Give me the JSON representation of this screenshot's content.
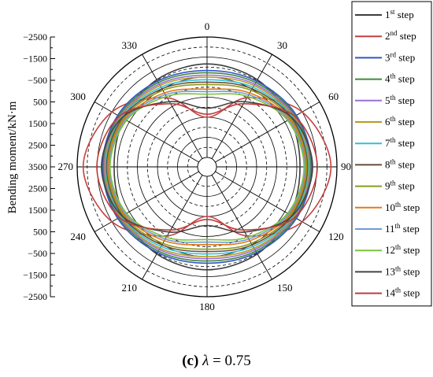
{
  "chart_data": {
    "type": "polar-line",
    "ylabel": "Bending moment/kN·m",
    "y_ticks": [
      "−2500",
      "−1500",
      "−500",
      "500",
      "1500",
      "2500",
      "3500",
      "2500",
      "1500",
      "500",
      "−500",
      "−1500",
      "−2500"
    ],
    "angle_ticks": [
      "0",
      "30",
      "60",
      "90",
      "120",
      "150",
      "180",
      "210",
      "240",
      "270",
      "300",
      "330"
    ],
    "radial_range": [
      -2500,
      3500
    ],
    "legend_position": "right",
    "caption": {
      "label": "(c)",
      "symbol": "λ",
      "value": " = 0.75"
    },
    "series": [
      {
        "name": "1",
        "suffix": "st",
        "color": "#3c3c3c",
        "values": [
          2160,
          2040,
          1800,
          1660,
          1800,
          2040,
          2160,
          2040,
          1800,
          1660,
          1800,
          2040
        ]
      },
      {
        "name": "2",
        "suffix": "nd",
        "color": "#c44141",
        "values": [
          -500,
          1000,
          2500,
          3200,
          2500,
          1000,
          -500,
          1000,
          2500,
          3200,
          2500,
          1000
        ]
      },
      {
        "name": "3",
        "suffix": "rd",
        "color": "#3456c4",
        "values": [
          1830,
          1960,
          2170,
          2240,
          2170,
          1960,
          1830,
          1960,
          2170,
          2240,
          2170,
          1960
        ]
      },
      {
        "name": "4",
        "suffix": "th",
        "color": "#3e8a3e",
        "values": [
          1720,
          1880,
          2110,
          2190,
          2110,
          1880,
          1720,
          1880,
          2110,
          2190,
          2110,
          1880
        ]
      },
      {
        "name": "5",
        "suffix": "th",
        "color": "#9b6fd6",
        "values": [
          1600,
          1790,
          2060,
          2150,
          2060,
          1790,
          1600,
          1790,
          2060,
          2150,
          2060,
          1790
        ]
      },
      {
        "name": "6",
        "suffix": "th",
        "color": "#b89a1e",
        "values": [
          1500,
          1710,
          2010,
          2110,
          2010,
          1710,
          1500,
          1710,
          2010,
          2110,
          2010,
          1710
        ]
      },
      {
        "name": "7",
        "suffix": "th",
        "color": "#2fc2d8",
        "values": [
          1370,
          1610,
          1960,
          2070,
          1960,
          1610,
          1370,
          1610,
          1960,
          2070,
          1960,
          1610
        ]
      },
      {
        "name": "8",
        "suffix": "th",
        "color": "#6b4a3a",
        "values": [
          1250,
          1520,
          1900,
          2030,
          1900,
          1520,
          1250,
          1520,
          1900,
          2030,
          1900,
          1520
        ]
      },
      {
        "name": "9",
        "suffix": "th",
        "color": "#8e9a1e",
        "values": [
          1130,
          1430,
          1840,
          1990,
          1840,
          1430,
          1130,
          1430,
          1840,
          1990,
          1840,
          1430
        ]
      },
      {
        "name": "10",
        "suffix": "th",
        "color": "#e07b1a",
        "values": [
          900,
          1280,
          1780,
          1950,
          1780,
          1280,
          900,
          1280,
          1780,
          1950,
          1780,
          1280
        ]
      },
      {
        "name": "11",
        "suffix": "th",
        "color": "#6f9ad8",
        "values": [
          780,
          1180,
          1720,
          1900,
          1720,
          1180,
          780,
          1180,
          1720,
          1900,
          1720,
          1180
        ]
      },
      {
        "name": "12",
        "suffix": "th",
        "color": "#7cc23a",
        "values": [
          650,
          1080,
          1660,
          1860,
          1660,
          1080,
          650,
          1080,
          1660,
          1860,
          1660,
          1080
        ]
      },
      {
        "name": "13",
        "suffix": "th",
        "color": "#444444",
        "values": [
          -50,
          780,
          1920,
          2290,
          1920,
          780,
          -50,
          780,
          1920,
          2290,
          1920,
          780
        ]
      },
      {
        "name": "14",
        "suffix": "th",
        "color": "#c03b3b",
        "values": [
          -350,
          660,
          2070,
          2520,
          2070,
          660,
          -350,
          660,
          2070,
          2520,
          2070,
          660
        ]
      }
    ]
  }
}
